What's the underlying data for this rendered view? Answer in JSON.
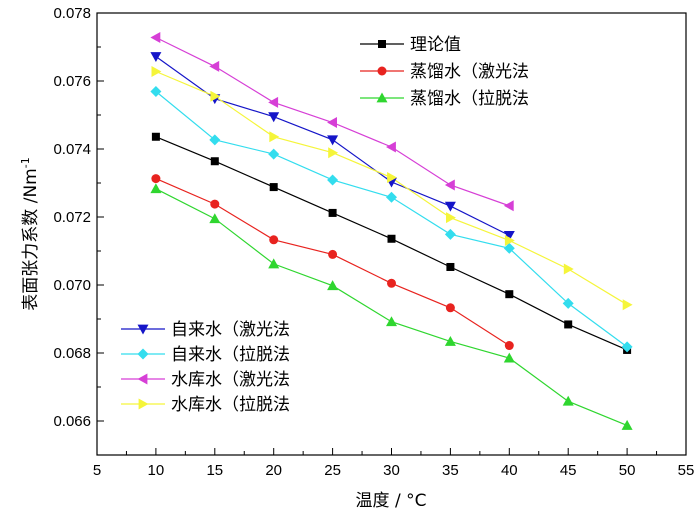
{
  "chart_data": {
    "type": "line",
    "xlabel": "温度 / °C",
    "ylabel_prefix": "表面张力系数 /Nm",
    "ylabel_sup": "-1",
    "xlim": [
      5,
      55
    ],
    "ylim": [
      0.065,
      0.078
    ],
    "xticks": [
      5,
      10,
      15,
      20,
      25,
      30,
      35,
      40,
      45,
      50,
      55
    ],
    "xtick_labels": [
      "5",
      "10",
      "15",
      "20",
      "25",
      "30",
      "35",
      "40",
      "45",
      "50",
      "55"
    ],
    "yticks": [
      0.066,
      0.068,
      0.07,
      0.072,
      0.074,
      0.076,
      0.078
    ],
    "ytick_labels": [
      "0.066",
      "0.068",
      "0.070",
      "0.072",
      "0.074",
      "0.076",
      "0.078"
    ],
    "grid": false,
    "legends": [
      {
        "position": "top-right",
        "series": [
          0,
          1,
          2
        ]
      },
      {
        "position": "bottom-left",
        "series": [
          3,
          4,
          5,
          6
        ]
      }
    ],
    "series": [
      {
        "name": "理论值",
        "color": "#000000",
        "marker": "square",
        "x": [
          10,
          15,
          20,
          25,
          30,
          35,
          40,
          45,
          50
        ],
        "y": [
          0.07436,
          0.07364,
          0.07288,
          0.07212,
          0.07136,
          0.07053,
          0.06973,
          0.06884,
          0.06809
        ]
      },
      {
        "name": "蒸馏水（激光法",
        "color": "#e8231f",
        "marker": "circle",
        "x": [
          10,
          15,
          20,
          25,
          30,
          35,
          40
        ],
        "y": [
          0.07313,
          0.07238,
          0.07133,
          0.0709,
          0.07005,
          0.06933,
          0.06822
        ]
      },
      {
        "name": "蒸馏水（拉脱法",
        "color": "#2fd62f",
        "marker": "triangle-up",
        "x": [
          10,
          15,
          20,
          25,
          30,
          35,
          40,
          45,
          50
        ],
        "y": [
          0.07283,
          0.07195,
          0.07062,
          0.06998,
          0.06892,
          0.06834,
          0.06785,
          0.06658,
          0.06587
        ]
      },
      {
        "name": "自来水（激光法",
        "color": "#1515c8",
        "marker": "triangle-down",
        "x": [
          10,
          15,
          20,
          25,
          30,
          35,
          40
        ],
        "y": [
          0.07672,
          0.07548,
          0.07495,
          0.07427,
          0.07303,
          0.07232,
          0.07146
        ]
      },
      {
        "name": "自来水（拉脱法",
        "color": "#33ddee",
        "marker": "diamond",
        "x": [
          10,
          15,
          20,
          25,
          30,
          35,
          40,
          45,
          50
        ],
        "y": [
          0.07569,
          0.07427,
          0.07385,
          0.07309,
          0.07258,
          0.07149,
          0.07108,
          0.06946,
          0.06818
        ]
      },
      {
        "name": "水库水（激光法",
        "color": "#d63fd6",
        "marker": "triangle-left",
        "x": [
          10,
          15,
          20,
          25,
          30,
          35,
          40
        ],
        "y": [
          0.07728,
          0.07643,
          0.07537,
          0.07478,
          0.07406,
          0.07294,
          0.07233
        ]
      },
      {
        "name": "水库水（拉脱法",
        "color": "#f5f53a",
        "marker": "triangle-right",
        "x": [
          10,
          15,
          20,
          25,
          30,
          35,
          40,
          45,
          50
        ],
        "y": [
          0.07628,
          0.07555,
          0.07436,
          0.07389,
          0.07316,
          0.07198,
          0.07131,
          0.07047,
          0.06942
        ]
      }
    ]
  }
}
